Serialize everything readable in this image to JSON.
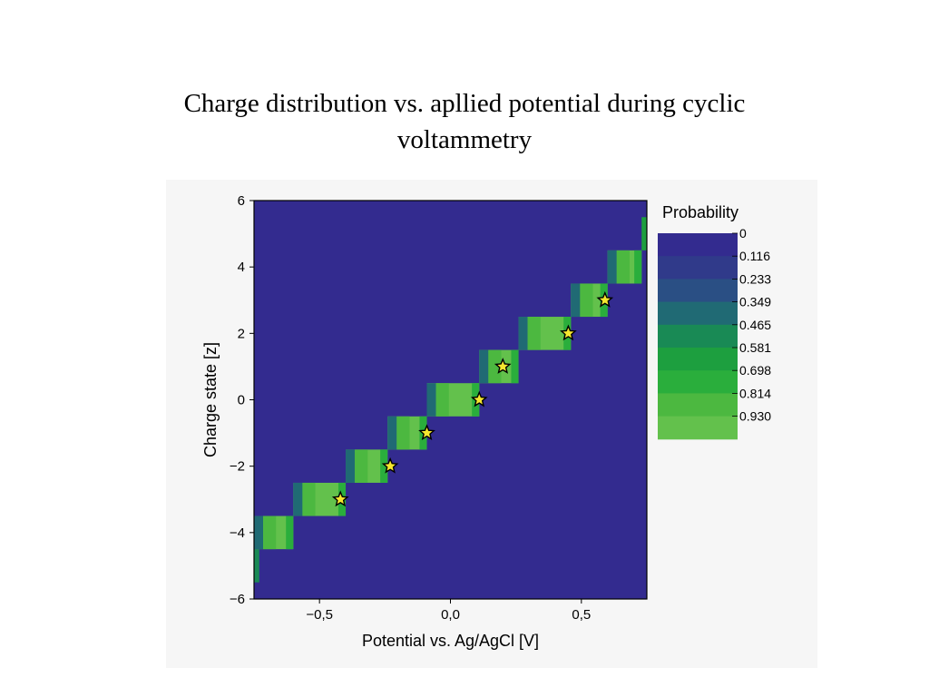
{
  "slide": {
    "title_line1": "Charge distribution vs. apllied potential during cyclic",
    "title_line2": "voltammetry"
  },
  "chart_data": {
    "type": "heatmap",
    "title": "",
    "xlabel": "Potential vs. Ag/AgCl [V]",
    "ylabel": "Charge state [z]",
    "xlim": [
      -0.75,
      0.75
    ],
    "ylim": [
      -6,
      6
    ],
    "x_ticks": [
      -0.5,
      0.0,
      0.5
    ],
    "x_tick_labels": [
      "−0,5",
      "0,0",
      "0,5"
    ],
    "y_ticks": [
      -6,
      -4,
      -2,
      0,
      2,
      4,
      6
    ],
    "y_tick_labels": [
      "−6",
      "−4",
      "−2",
      "0",
      "2",
      "4",
      "6"
    ],
    "background_color": "#332b8f",
    "colorbar": {
      "title": "Probability",
      "levels": [
        0,
        0.116,
        0.233,
        0.349,
        0.465,
        0.581,
        0.698,
        0.814,
        0.93
      ],
      "labels": [
        "0",
        "0.116",
        "0.233",
        "0.349",
        "0.465",
        "0.581",
        "0.698",
        "0.814",
        "0.930"
      ],
      "colors": [
        "#332b8f",
        "#303a8a",
        "#2a4f84",
        "#206a74",
        "#198a55",
        "#1d9f3f",
        "#2aae3c",
        "#4cb840",
        "#63c14c"
      ]
    },
    "charge_bands": [
      {
        "z": -5,
        "x_start": -0.75,
        "x_end": -0.73,
        "p": 0.5
      },
      {
        "z": -4,
        "x_start": -0.75,
        "x_end": -0.6,
        "p": 0.93
      },
      {
        "z": -3,
        "x_start": -0.6,
        "x_end": -0.4,
        "p": 0.93
      },
      {
        "z": -2,
        "x_start": -0.4,
        "x_end": -0.24,
        "p": 0.93
      },
      {
        "z": -1,
        "x_start": -0.24,
        "x_end": -0.09,
        "p": 0.93
      },
      {
        "z": 0,
        "x_start": -0.09,
        "x_end": 0.11,
        "p": 0.93
      },
      {
        "z": 1,
        "x_start": 0.11,
        "x_end": 0.26,
        "p": 0.93
      },
      {
        "z": 2,
        "x_start": 0.26,
        "x_end": 0.46,
        "p": 0.93
      },
      {
        "z": 3,
        "x_start": 0.46,
        "x_end": 0.6,
        "p": 0.93
      },
      {
        "z": 4,
        "x_start": 0.6,
        "x_end": 0.73,
        "p": 0.93
      },
      {
        "z": 5,
        "x_start": 0.73,
        "x_end": 0.75,
        "p": 0.6
      }
    ],
    "star_markers": [
      {
        "x": -0.42,
        "y": -3
      },
      {
        "x": -0.23,
        "y": -2
      },
      {
        "x": -0.09,
        "y": -1
      },
      {
        "x": 0.11,
        "y": 0
      },
      {
        "x": 0.2,
        "y": 1
      },
      {
        "x": 0.45,
        "y": 2
      },
      {
        "x": 0.59,
        "y": 3
      }
    ]
  }
}
